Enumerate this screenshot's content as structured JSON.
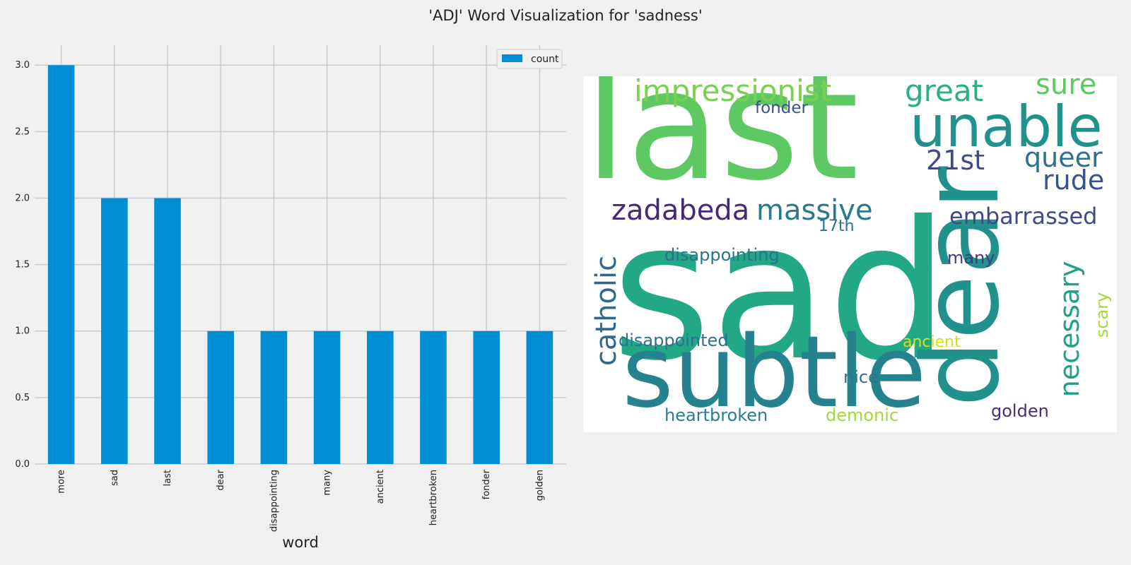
{
  "figure_title": "'ADJ' Word Visualization for 'sadness'",
  "chart_data": {
    "type": "bar",
    "categories": [
      "more",
      "sad",
      "last",
      "dear",
      "disappointing",
      "many",
      "ancient",
      "heartbroken",
      "fonder",
      "golden"
    ],
    "series": [
      {
        "name": "count",
        "values": [
          3,
          2,
          2,
          1,
          1,
          1,
          1,
          1,
          1,
          1
        ]
      }
    ],
    "xlabel": "word",
    "ylabel": "",
    "ylim": [
      0,
      3.15
    ],
    "yticks": [
      "0.0",
      "0.5",
      "1.0",
      "1.5",
      "2.0",
      "2.5",
      "3.0"
    ],
    "grid": true,
    "legend": "top-right",
    "bar_color": "#008fd5"
  },
  "wordcloud": {
    "words": [
      {
        "text": "last",
        "color": "#5ec962"
      },
      {
        "text": "sad",
        "color": "#22a884"
      },
      {
        "text": "subtle",
        "color": "#26828e"
      },
      {
        "text": "dear",
        "color": "#21918c"
      },
      {
        "text": "unable",
        "color": "#21918c"
      },
      {
        "text": "impressionist",
        "color": "#7ad151"
      },
      {
        "text": "great",
        "color": "#2ab07f"
      },
      {
        "text": "sure",
        "color": "#5ec962"
      },
      {
        "text": "fonder",
        "color": "#3b528b"
      },
      {
        "text": "21st",
        "color": "#3e4a89"
      },
      {
        "text": "queer",
        "color": "#2c728e"
      },
      {
        "text": "rude",
        "color": "#3b528b"
      },
      {
        "text": "zadabeda",
        "color": "#482878"
      },
      {
        "text": "massive",
        "color": "#2a788e"
      },
      {
        "text": "embarrassed",
        "color": "#3e4a89"
      },
      {
        "text": "17th",
        "color": "#2c728e"
      },
      {
        "text": "catholic",
        "color": "#31688e"
      },
      {
        "text": "disappointing",
        "color": "#2c728e"
      },
      {
        "text": "many",
        "color": "#443983"
      },
      {
        "text": "necessary",
        "color": "#1fa187"
      },
      {
        "text": "scary",
        "color": "#a0da39"
      },
      {
        "text": "disappointed",
        "color": "#2c728e"
      },
      {
        "text": "ancient",
        "color": "#d0e11c"
      },
      {
        "text": "nice",
        "color": "#2c728e"
      },
      {
        "text": "heartbroken",
        "color": "#277f8e"
      },
      {
        "text": "demonic",
        "color": "#a0da39"
      },
      {
        "text": "golden",
        "color": "#472d7b"
      }
    ]
  }
}
